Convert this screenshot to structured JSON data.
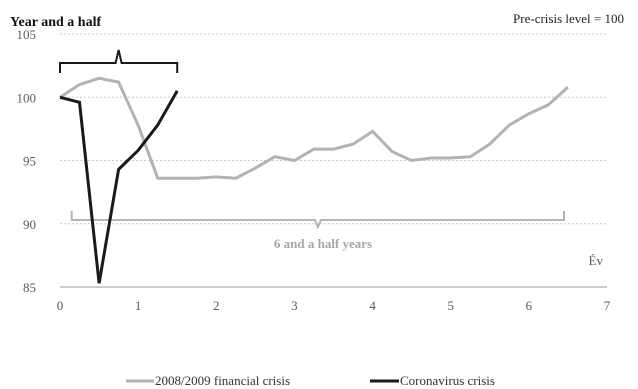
{
  "chart_data": {
    "type": "line",
    "note": "Pre-crisis level = 100",
    "xlabel": "Év",
    "xlim": [
      0,
      7
    ],
    "ylim": [
      85,
      105
    ],
    "x_ticks": [
      "0",
      "1",
      "2",
      "3",
      "4",
      "5",
      "6",
      "7"
    ],
    "y_ticks": [
      "85",
      "90",
      "95",
      "100",
      "105"
    ],
    "grid": "horizontal dashed",
    "legend_position": "bottom",
    "series": [
      {
        "name": "2008/2009 financial crisis",
        "color": "#b3b3b3",
        "points": [
          [
            0,
            100
          ],
          [
            0.25,
            101
          ],
          [
            0.5,
            101.5
          ],
          [
            0.75,
            101.2
          ],
          [
            1.0,
            97.8
          ],
          [
            1.25,
            93.6
          ],
          [
            1.5,
            93.6
          ],
          [
            1.75,
            93.6
          ],
          [
            2.0,
            93.7
          ],
          [
            2.25,
            93.6
          ],
          [
            2.5,
            94.4
          ],
          [
            2.75,
            95.3
          ],
          [
            3.0,
            95.0
          ],
          [
            3.25,
            95.9
          ],
          [
            3.5,
            95.9
          ],
          [
            3.75,
            96.3
          ],
          [
            4.0,
            97.3
          ],
          [
            4.25,
            95.7
          ],
          [
            4.5,
            95.0
          ],
          [
            4.75,
            95.2
          ],
          [
            5.0,
            95.2
          ],
          [
            5.25,
            95.3
          ],
          [
            5.5,
            96.3
          ],
          [
            5.75,
            97.8
          ],
          [
            6.0,
            98.7
          ],
          [
            6.25,
            99.4
          ],
          [
            6.5,
            100.8
          ]
        ]
      },
      {
        "name": "Coronavirus crisis",
        "color": "#1a1a1a",
        "points": [
          [
            0,
            100
          ],
          [
            0.25,
            99.6
          ],
          [
            0.5,
            85.3
          ],
          [
            0.75,
            94.3
          ],
          [
            1.0,
            95.8
          ],
          [
            1.25,
            97.8
          ],
          [
            1.5,
            100.5
          ]
        ]
      }
    ],
    "annotations": [
      {
        "text": "Year and a half",
        "from": 0,
        "to": 1.5,
        "color": "#1a1a1a"
      },
      {
        "text": "6 and a half years",
        "from": 0.15,
        "to": 6.45,
        "color": "#b3b3b3"
      }
    ]
  }
}
